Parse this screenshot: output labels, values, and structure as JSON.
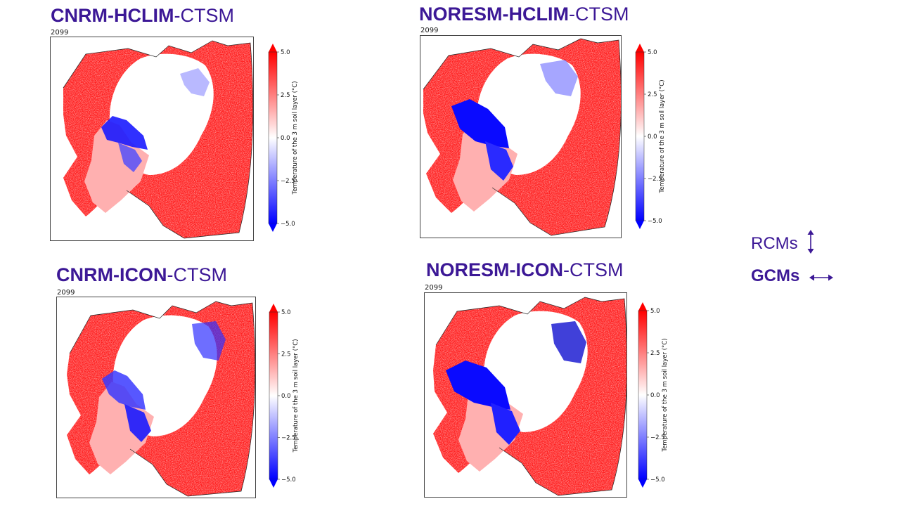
{
  "colors": {
    "title": "#3c1896",
    "warm": "#ff0000",
    "cold": "#0000ff",
    "neutral": "#ffffff"
  },
  "panels": [
    {
      "id": "cnrm-hclim",
      "title_bold": "CNRM-HCLIM",
      "title_light": "-CTSM",
      "year": "2099",
      "colorbar": {
        "label": "Temperature of the 3 m soil layer (°C)",
        "ticks": [
          "5.0",
          "2.5",
          "0.0",
          "−2.5",
          "−5.0"
        ],
        "min": -5.0,
        "max": 5.0
      }
    },
    {
      "id": "noresm-hclim",
      "title_bold": "NORESM-HCLIM",
      "title_light": "-CTSM",
      "year": "2099",
      "colorbar": {
        "label": "Temperature of the 3 m soil layer (°C)",
        "ticks": [
          "5.0",
          "2.5",
          "0.0",
          "−2.5",
          "−5.0"
        ],
        "min": -5.0,
        "max": 5.0
      }
    },
    {
      "id": "cnrm-icon",
      "title_bold": "CNRM-ICON",
      "title_light": "-CTSM",
      "year": "2099",
      "colorbar": {
        "label": "Temperature of the 3 m soil layer (°C)",
        "ticks": [
          "5.0",
          "2.5",
          "0.0",
          "−2.5",
          "−5.0"
        ],
        "min": -5.0,
        "max": 5.0
      }
    },
    {
      "id": "noresm-icon",
      "title_bold": "NORESM-ICON",
      "title_light": "-CTSM",
      "year": "2099",
      "colorbar": {
        "label": "Temperature of the 3 m soil layer (°C)",
        "ticks": [
          "5.0",
          "2.5",
          "0.0",
          "−2.5",
          "−5.0"
        ],
        "min": -5.0,
        "max": 5.0
      }
    }
  ],
  "legend": {
    "rcms": {
      "label": "RCMs",
      "arrow_icon": "vertical-double-arrow-icon"
    },
    "gcms": {
      "label": "GCMs",
      "arrow_icon": "horizontal-double-arrow-icon"
    }
  }
}
